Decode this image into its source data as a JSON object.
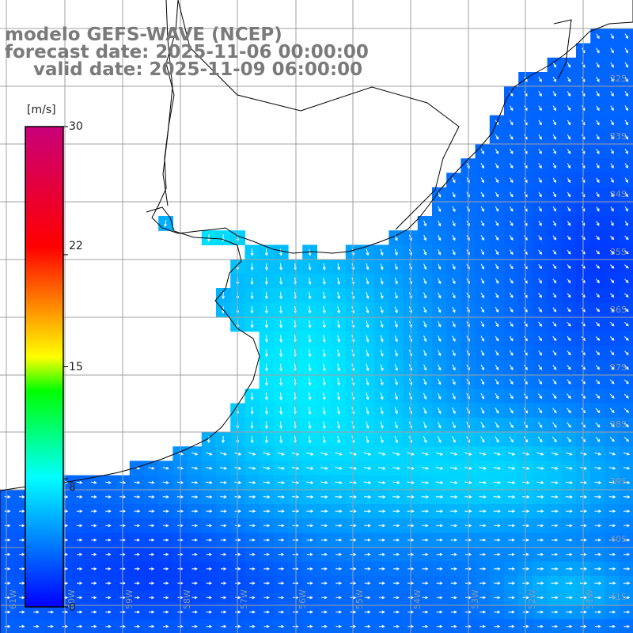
{
  "header": {
    "model_line": "modelo GEFS-WAVE (NCEP)",
    "forecast_line": "forecast date: 2025-11-06 00:00:00",
    "valid_line": "valid date: 2025-11-09 06:00:00"
  },
  "colorbar": {
    "unit": "[m/s]",
    "ticks": [
      {
        "value": 30,
        "label": "30"
      },
      {
        "value": 22,
        "label": "22"
      },
      {
        "value": 15,
        "label": "15"
      },
      {
        "value": 8,
        "label": "8"
      },
      {
        "value": 0,
        "label": "0"
      }
    ],
    "range": [
      0,
      30
    ],
    "colors": [
      "#0000ff",
      "#00ffff",
      "#00ff00",
      "#ffff00",
      "#ff0000",
      "#c8007a"
    ]
  },
  "grid": {
    "lat_labels": [
      "32S",
      "33S",
      "34S",
      "35S",
      "36S",
      "37S",
      "38S",
      "39S",
      "40S",
      "41S"
    ],
    "lon_labels": [
      "61W",
      "60W",
      "59W",
      "58W",
      "57W",
      "56W",
      "55W",
      "54W",
      "53W",
      "52W",
      "51W"
    ]
  },
  "colors": {
    "land": "#ffffff",
    "coast": "#000000",
    "grid": "#a0a0a0",
    "arrow": "#ffffff",
    "title": "#7a7a7a"
  }
}
